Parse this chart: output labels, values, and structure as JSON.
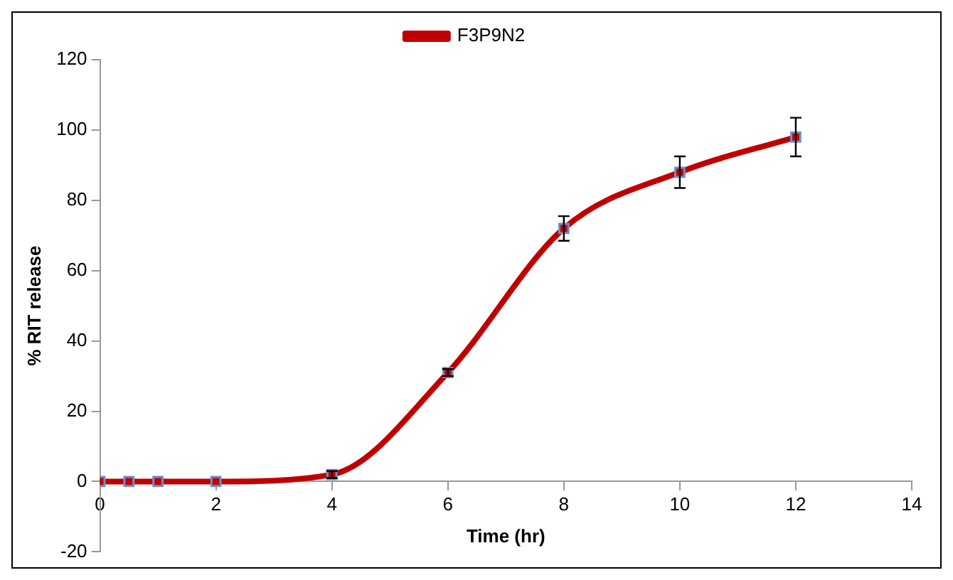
{
  "chart_data": {
    "type": "line",
    "xlabel": "Time (hr)",
    "ylabel": "% RIT release",
    "x": [
      0,
      0.5,
      1,
      2,
      4,
      6,
      8,
      10,
      12
    ],
    "series": [
      {
        "name": "F3P9N2",
        "color": "#c00000",
        "values": [
          0,
          0,
          0,
          0,
          2,
          31,
          72,
          88,
          98
        ],
        "errors": [
          null,
          null,
          null,
          null,
          1,
          1,
          3.5,
          4.5,
          5.5
        ]
      }
    ],
    "xlim": [
      0,
      14
    ],
    "xticks": [
      0,
      2,
      4,
      6,
      8,
      10,
      12,
      14
    ],
    "ylim": [
      -20,
      120
    ],
    "yticks": [
      -20,
      0,
      20,
      40,
      60,
      80,
      100,
      120
    ],
    "grid": false,
    "legend": "top",
    "marker": "square",
    "line_style": "solid"
  }
}
